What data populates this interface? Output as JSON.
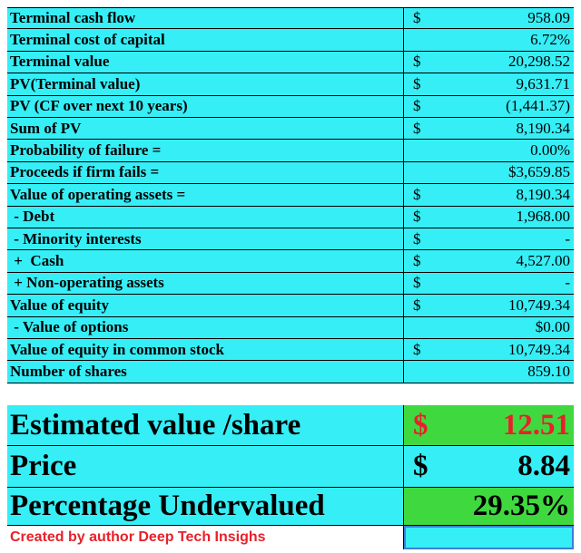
{
  "table": {
    "rows": [
      {
        "label": "Terminal cash flow",
        "currency": "$",
        "value": "958.09"
      },
      {
        "label": "Terminal cost of capital",
        "value": "6.72%"
      },
      {
        "label": "Terminal value",
        "currency": "$",
        "value": "20,298.52"
      },
      {
        "label": "PV(Terminal value)",
        "currency": "$",
        "value": "9,631.71"
      },
      {
        "label": "PV (CF over next 10 years)",
        "currency": "$",
        "value": "(1,441.37)"
      },
      {
        "label": "Sum of PV",
        "currency": "$",
        "value": "8,190.34"
      },
      {
        "label": "Probability of failure =",
        "value": "0.00%"
      },
      {
        "label": "Proceeds if firm fails =",
        "value": "$3,659.85"
      },
      {
        "label": "Value of operating assets =",
        "currency": "$",
        "value": "8,190.34"
      },
      {
        "label": " - Debt",
        "currency": "$",
        "value": "1,968.00"
      },
      {
        "label": " - Minority interests",
        "currency": "$",
        "value": "-"
      },
      {
        "label": " +  Cash",
        "currency": "$",
        "value": "4,527.00"
      },
      {
        "label": " + Non-operating assets",
        "currency": "$",
        "value": "-"
      },
      {
        "label": "Value of equity",
        "currency": "$",
        "value": "10,749.34"
      },
      {
        "label": " - Value of options",
        "value": "$0.00"
      },
      {
        "label": "Value of equity in common stock",
        "currency": "$",
        "value": "10,749.34"
      },
      {
        "label": "Number of shares",
        "value": "859.10"
      }
    ],
    "summary": [
      {
        "label": "Estimated value /share",
        "currency": "$",
        "value": "12.51"
      },
      {
        "label": "Price",
        "currency": "$",
        "value": "8.84"
      },
      {
        "label": "Percentage Undervalued",
        "value": "29.35%"
      }
    ],
    "footer": "Created by author Deep Tech Insighs"
  }
}
